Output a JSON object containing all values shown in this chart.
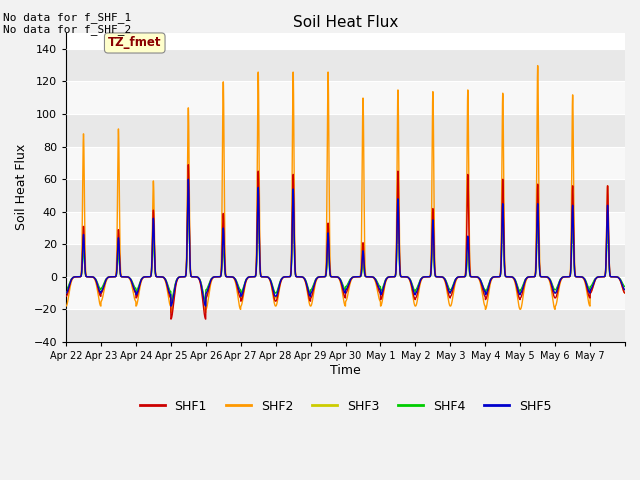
{
  "title": "Soil Heat Flux",
  "ylabel": "Soil Heat Flux",
  "xlabel": "Time",
  "no_data_text": [
    "No data for f_SHF_1",
    "No data for f_SHF_2"
  ],
  "tz_label": "TZ_fmet",
  "ylim": [
    -40,
    150
  ],
  "yticks": [
    -40,
    -20,
    0,
    20,
    40,
    60,
    80,
    100,
    120,
    140
  ],
  "background_color": "#f2f2f2",
  "plot_bg_color": "#ffffff",
  "band_colors": [
    "#e8e8e8",
    "#f8f8f8"
  ],
  "series_colors": {
    "SHF1": "#cc0000",
    "SHF2": "#ff9900",
    "SHF3": "#cccc00",
    "SHF4": "#00cc00",
    "SHF5": "#0000cc"
  },
  "n_days": 16,
  "samples_per_day": 288,
  "shf2_peaks": [
    88,
    91,
    59,
    104,
    120,
    126,
    126,
    126,
    110,
    115,
    114,
    115,
    113,
    130,
    112,
    56
  ],
  "shf1_peaks": [
    31,
    29,
    41,
    69,
    39,
    65,
    63,
    33,
    21,
    65,
    42,
    63,
    60,
    57,
    56,
    56
  ],
  "shf3_peaks": [
    24,
    22,
    30,
    58,
    25,
    50,
    50,
    24,
    12,
    46,
    30,
    20,
    45,
    45,
    40,
    40
  ],
  "shf4_peaks": [
    18,
    16,
    24,
    50,
    20,
    43,
    43,
    18,
    8,
    40,
    24,
    15,
    38,
    38,
    33,
    33
  ],
  "shf5_peaks": [
    26,
    24,
    36,
    60,
    30,
    55,
    54,
    27,
    16,
    48,
    35,
    25,
    45,
    45,
    44,
    44
  ],
  "shf2_troughs": [
    -18,
    -15,
    -18,
    -22,
    -20,
    -18,
    -18,
    -18,
    -15,
    -18,
    -18,
    -18,
    -20,
    -20,
    -18,
    -10
  ],
  "shf1_troughs": [
    -12,
    -10,
    -13,
    -26,
    -13,
    -15,
    -15,
    -13,
    -10,
    -14,
    -13,
    -12,
    -14,
    -13,
    -13,
    -10
  ],
  "shf3_troughs": [
    -10,
    -9,
    -11,
    -18,
    -10,
    -13,
    -13,
    -10,
    -8,
    -11,
    -10,
    -10,
    -11,
    -10,
    -10,
    -8
  ],
  "shf4_troughs": [
    -8,
    -7,
    -9,
    -15,
    -8,
    -10,
    -10,
    -8,
    -6,
    -9,
    -8,
    -8,
    -9,
    -8,
    -8,
    -6
  ],
  "shf5_troughs": [
    -10,
    -9,
    -11,
    -18,
    -10,
    -12,
    -12,
    -10,
    -8,
    -11,
    -10,
    -9,
    -11,
    -10,
    -10,
    -8
  ],
  "tick_labels": [
    "Apr 22",
    "Apr 23",
    "Apr 24",
    "Apr 25",
    "Apr 26",
    "Apr 27",
    "Apr 28",
    "Apr 29",
    "Apr 30",
    "May 1",
    "May 2",
    "May 3",
    "May 4",
    "May 5",
    "May 6",
    "May 7"
  ],
  "legend_entries": [
    "SHF1",
    "SHF2",
    "SHF3",
    "SHF4",
    "SHF5"
  ],
  "legend_colors": [
    "#cc0000",
    "#ff9900",
    "#cccc00",
    "#00cc00",
    "#0000cc"
  ]
}
